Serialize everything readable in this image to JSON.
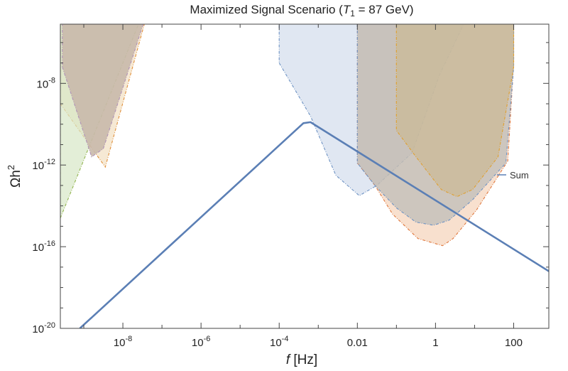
{
  "chart_data": {
    "type": "line",
    "title_main": "Maximized Signal Scenario (",
    "title_var": "T",
    "title_sub": "1",
    "title_rest": " = 87 GeV)",
    "xlabel_var": "f",
    "xlabel_unit": " [Hz]",
    "ylabel_base": "Ωh",
    "ylabel_exp": "2",
    "xscale": "log",
    "yscale": "log",
    "xlim_log10": [
      -9.6,
      2.9
    ],
    "ylim_log10": [
      -20,
      -5.1
    ],
    "x_ticks": [
      {
        "exp": -8,
        "base": "10",
        "sup": "-8"
      },
      {
        "exp": -6,
        "base": "10",
        "sup": "-6"
      },
      {
        "exp": -4,
        "base": "10",
        "sup": "-4"
      },
      {
        "exp": -2,
        "text": "0.01"
      },
      {
        "exp": 0,
        "text": "1"
      },
      {
        "exp": 2,
        "text": "100"
      }
    ],
    "y_ticks": [
      {
        "exp": -8,
        "base": "10",
        "sup": "-8"
      },
      {
        "exp": -12,
        "base": "10",
        "sup": "-12"
      },
      {
        "exp": -16,
        "base": "10",
        "sup": "-16"
      },
      {
        "exp": -20,
        "base": "10",
        "sup": "-20"
      }
    ],
    "grid": false,
    "legend_position": "right",
    "series": [
      {
        "name": "Sum",
        "color": "#5b7fb5",
        "log10_points": [
          [
            -9.1,
            -20
          ],
          [
            -3.38,
            -9.95
          ],
          [
            -3.2,
            -9.9
          ],
          [
            2.9,
            -17.2
          ]
        ]
      }
    ],
    "regions": [
      {
        "fill": "#f3e1c6",
        "edge": "#e0903c",
        "opacity": 0.75,
        "log10_points": [
          [
            -9.6,
            -9
          ],
          [
            -8.45,
            -12.1
          ],
          [
            -7.45,
            -5.1
          ],
          [
            -9.6,
            -5.1
          ]
        ]
      },
      {
        "fill": "#d7e7c6",
        "edge": "#93b551",
        "opacity": 0.7,
        "log10_points": [
          [
            -9.6,
            -14.6
          ],
          [
            -7.6,
            -5.1
          ],
          [
            -9.6,
            -5.1
          ]
        ]
      },
      {
        "fill": "#c9b9ab",
        "edge": "#b093b8",
        "opacity": 0.9,
        "log10_points": [
          [
            -9.55,
            -7.2
          ],
          [
            -8.8,
            -11.6
          ],
          [
            -8.5,
            -11.2
          ],
          [
            -7.48,
            -5.1
          ],
          [
            -9.55,
            -5.1
          ]
        ]
      },
      {
        "fill": "#c6d3e8",
        "edge": "#6e93c4",
        "opacity": 0.55,
        "log10_points": [
          [
            -4.0,
            -7.0
          ],
          [
            -3.2,
            -9.6
          ],
          [
            -2.55,
            -12.5
          ],
          [
            -1.95,
            -13.5
          ],
          [
            -1.5,
            -13.0
          ],
          [
            -0.6,
            -11.4
          ],
          [
            0.1,
            -7.6
          ],
          [
            0.72,
            -5.1
          ],
          [
            -4.0,
            -5.1
          ]
        ]
      },
      {
        "fill": "#f3c6a6",
        "edge": "#e07a40",
        "opacity": 0.55,
        "log10_points": [
          [
            -2.0,
            -11.9
          ],
          [
            -1.55,
            -13.0
          ],
          [
            -1.1,
            -14.4
          ],
          [
            -0.45,
            -15.6
          ],
          [
            0.18,
            -15.95
          ],
          [
            0.45,
            -15.6
          ],
          [
            1.05,
            -14.2
          ],
          [
            1.85,
            -11.8
          ],
          [
            2.0,
            -7.0
          ],
          [
            2.0,
            -5.1
          ],
          [
            -2.0,
            -5.1
          ]
        ]
      },
      {
        "fill": "#b5b8b6",
        "edge": "#6e93c4",
        "opacity": 0.65,
        "log10_points": [
          [
            -2.0,
            -5.1
          ],
          [
            -2.0,
            -11.9
          ],
          [
            -1.55,
            -13.0
          ],
          [
            -1.0,
            -14.1
          ],
          [
            -0.5,
            -14.8
          ],
          [
            -0.05,
            -14.95
          ],
          [
            0.35,
            -14.7
          ],
          [
            0.95,
            -13.7
          ],
          [
            1.8,
            -11.9
          ],
          [
            2.0,
            -7.2
          ],
          [
            2.0,
            -5.1
          ]
        ]
      },
      {
        "fill": "#cbb88f",
        "edge": "#e0a030",
        "opacity": 0.62,
        "log10_points": [
          [
            -1.0,
            -5.1
          ],
          [
            -1.0,
            -10.3
          ],
          [
            -0.5,
            -11.6
          ],
          [
            0.15,
            -13.2
          ],
          [
            0.55,
            -13.55
          ],
          [
            0.95,
            -13.2
          ],
          [
            1.6,
            -11.6
          ],
          [
            2.0,
            -7.2
          ],
          [
            2.0,
            -5.1
          ]
        ]
      }
    ]
  }
}
